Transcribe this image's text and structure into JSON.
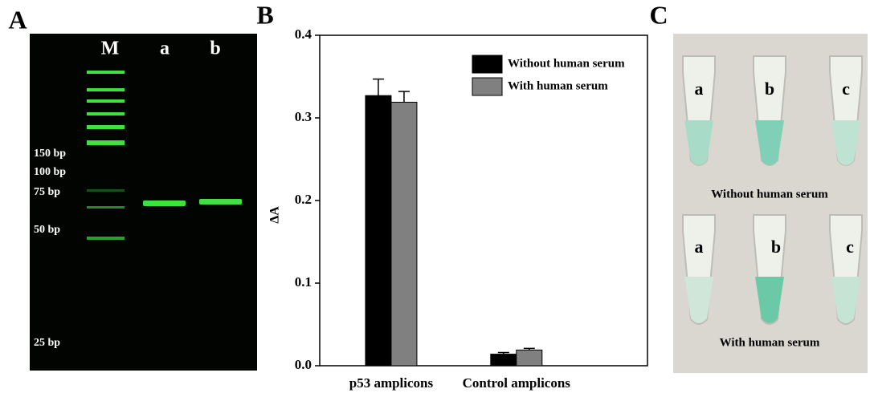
{
  "gel": {
    "label": "A",
    "lanes": [
      "M",
      "a",
      "b"
    ],
    "markers": [
      "150 bp",
      "100 bp",
      "75 bp",
      "50 bp",
      "25 bp"
    ]
  },
  "chart_data": {
    "type": "bar",
    "panel_label": "B",
    "y_label": "ΔA",
    "categories": [
      "p53 amplicons",
      "Control amplicons"
    ],
    "series": [
      {
        "name": "Without human serum",
        "color": "#000000",
        "values": [
          0.327,
          0.014
        ],
        "errors": [
          0.02,
          0.002
        ]
      },
      {
        "name": "With human serum",
        "color": "#808080",
        "values": [
          0.319,
          0.019
        ],
        "errors": [
          0.013,
          0.002
        ]
      }
    ],
    "ylim": [
      0,
      0.4
    ],
    "yticks": [
      {
        "value": 0,
        "label": "0.0"
      },
      0.1,
      0.2,
      0.3,
      0.4
    ],
    "legend": "upper right"
  },
  "photo": {
    "label": "C",
    "top_tubes": [
      "a",
      "b",
      "c"
    ],
    "top_caption": "Without human serum",
    "bottom_tubes": [
      "a",
      "b",
      "c"
    ],
    "bottom_caption": "With human serum"
  }
}
